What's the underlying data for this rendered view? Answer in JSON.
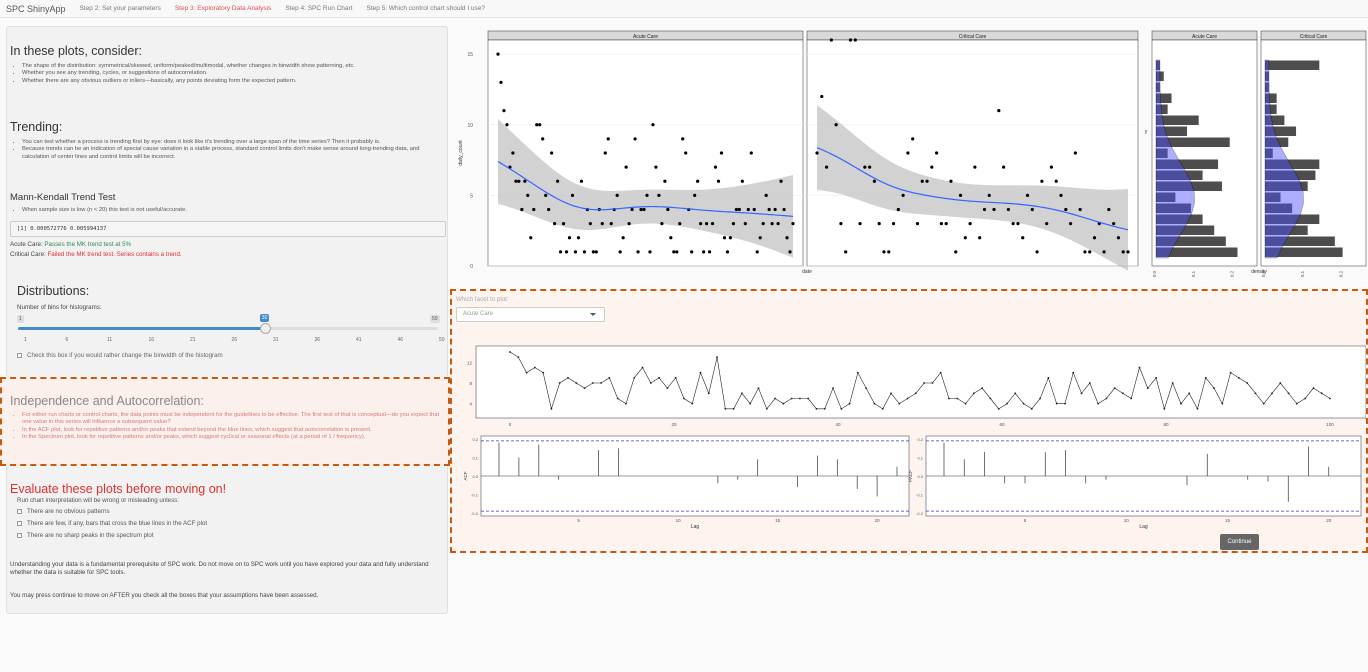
{
  "nav": {
    "brand": "SPC ShinyApp",
    "tabs": [
      {
        "label": "Step 2: Set your parameters",
        "active": false
      },
      {
        "label": "Step 3: Exploratory Data Analysis",
        "active": true
      },
      {
        "label": "Step 4: SPC Run Chart",
        "active": false
      },
      {
        "label": "Step 5: Which control chart should I use?",
        "active": false
      }
    ]
  },
  "consider": {
    "title": "In these plots, consider:",
    "bullets": [
      "The shape of the distribution: symmetrical/skewed, uniform/peaked/multimodal, whether changes in binwidth show patterning, etc.",
      "Whether you see any trending, cycles, or suggestions of autocorrelation.",
      "Whether there are any obvious outliers or inliers—basically, any points deviating form the expected pattern."
    ]
  },
  "trending": {
    "title": "Trending:",
    "bullets": [
      "You can test whether a process is trending first by eye: does it look like it's trending over a large span of the time series? Then it probably is.",
      "Because trends can be an indication of special cause variation in a stable process, standard control limits don't make sense around long-trending data, and calculation of center lines and control limits will be incorrect."
    ]
  },
  "mk": {
    "title": "Mann-Kendall Trend Test",
    "bullet": "When sample size is low (n < 20) this test is not useful/accurate.",
    "output": "[1] 0.000572776 0.005994137",
    "acute_label": "Acute Care: ",
    "acute_result": "Passes the MK trend test at 5%",
    "critical_label": "Critical Care: ",
    "critical_result": "Failed the MK trend test. Series contains a trend."
  },
  "distributions": {
    "title": "Distributions:",
    "bins_label": "Number of bins for histograms:",
    "min": "1",
    "max": "50",
    "value": "30",
    "value_fraction": 0.59,
    "ticks": [
      "1",
      "6",
      "11",
      "16",
      "21",
      "26",
      "31",
      "36",
      "41",
      "46",
      "50"
    ],
    "checkbox_label": "Check this box if you would rather change the binwidth of the histogram"
  },
  "independence": {
    "title": "Independence and Autocorrelation:",
    "bullets": [
      "For either run charts or control charts, the data points must be independent for the guidelines to be effective. The first test of that is conceptual—do you expect that one value in this series will influence a subsequent value?",
      "In the ACF plot, look for repetitive patterns and/or peaks that extend beyond the blue lines, which suggest that autocorrelation is present.",
      "In the Spectrum plot, look for repetitive patterns and/or peaks, which suggest cyclical or seasonal effects (at a period of 1 / frequency)."
    ]
  },
  "evaluate": {
    "title": "Evaluate these plots before moving on!",
    "intro": "Run chart interpretation will be wrong or misleading unless:",
    "checks": [
      "There are no obvious patterns",
      "There are few, if any, bars that cross the blue lines in the ACF plot",
      "There are no sharp peaks in the spectrum plot"
    ],
    "para1": "Understanding your data is a fundamental prerequisite of SPC work. Do not move on to SPC work until you have explored your data and fully understand whether the data is suitable for SPC tools.",
    "para2": "You may press continue to move on AFTER you check all the boxes that your assumptions have been assessed."
  },
  "facet_select": {
    "label": "Which facet to plot:",
    "value": "Acute Care"
  },
  "continue_label": "Continue",
  "colors": {
    "accent": "#e05050",
    "dashed": "#c55a11",
    "smooth": "#3366ff",
    "ci": "#bfbfbf",
    "hist_fill": "#4d4dff",
    "bar": "#4d4d4d"
  },
  "chart_data": [
    {
      "type": "scatter",
      "facets": [
        "Acute Care",
        "Critical Care"
      ],
      "xlabel": "date",
      "ylabel": "daily_count",
      "ylim": [
        0,
        16
      ],
      "yticks": [
        "0",
        "5",
        "10",
        "15"
      ],
      "series": [
        {
          "values": [
            15,
            13,
            11,
            10,
            7,
            8,
            6,
            6,
            4,
            6,
            5,
            2,
            4,
            10,
            10,
            9,
            5,
            4,
            8,
            3,
            6,
            1,
            3,
            1,
            2,
            5,
            1,
            2,
            6,
            1,
            4,
            3,
            1,
            1,
            4,
            3,
            8,
            9,
            3,
            4,
            5,
            1,
            2,
            7,
            3,
            4,
            9,
            1,
            4,
            4,
            5,
            1,
            10,
            7,
            5,
            3,
            6,
            4,
            2,
            1,
            1,
            3,
            9,
            8,
            4,
            1,
            5,
            6,
            3,
            1,
            3,
            1,
            3,
            7,
            6,
            8,
            2,
            1,
            2,
            3,
            4,
            4,
            6,
            3,
            4,
            8,
            4,
            1,
            2,
            3,
            5,
            4,
            3,
            4,
            3,
            6,
            4,
            2,
            1,
            3
          ]
        },
        {
          "values": [
            8,
            12,
            7,
            16,
            10,
            3,
            1,
            16,
            16,
            3,
            7,
            7,
            6,
            3,
            1,
            1,
            3,
            4,
            5,
            8,
            9,
            3,
            6,
            6,
            7,
            8,
            3,
            3,
            6,
            1,
            5,
            2,
            3,
            7,
            2,
            4,
            5,
            4,
            11,
            7,
            4,
            3,
            3,
            2,
            5,
            4,
            1,
            6,
            3,
            7,
            6,
            5,
            4,
            3,
            8,
            4,
            1,
            1,
            2,
            3,
            1,
            4,
            3,
            2,
            1,
            1
          ]
        }
      ]
    },
    {
      "type": "bar",
      "facets": [
        "Acute Care",
        "Critical Care"
      ],
      "xlabel": "density",
      "ylabel": "y",
      "xticks": [
        "0.0",
        "0.1",
        "0.2"
      ],
      "series": [
        {
          "name": "Acute Care",
          "values": [
            0.21,
            0.18,
            0.15,
            0.12,
            0.09,
            0.05,
            0.17,
            0.12,
            0.16,
            0.03,
            0.19,
            0.08,
            0.11,
            0.03,
            0.04,
            0.01,
            0.02,
            0.01
          ]
        },
        {
          "name": "Critical Care",
          "values": [
            0.2,
            0.18,
            0.11,
            0.14,
            0.07,
            0.04,
            0.11,
            0.13,
            0.14,
            0.02,
            0.06,
            0.08,
            0.05,
            0.03,
            0.03,
            0.01,
            0.01,
            0.14
          ]
        }
      ]
    },
    {
      "type": "line",
      "yticks": [
        "4",
        "8",
        "12"
      ],
      "xticks": [
        "0",
        "20",
        "40",
        "60",
        "80",
        "100"
      ],
      "series": [
        {
          "values": [
            14,
            13,
            10,
            11,
            10,
            3,
            8,
            9,
            8,
            7,
            8,
            8,
            9,
            5,
            4,
            9,
            11,
            8,
            9,
            7,
            9,
            5,
            4,
            10,
            6,
            13,
            3,
            3,
            6,
            4,
            7,
            3,
            5,
            4,
            5,
            5,
            5,
            3,
            3,
            7,
            3,
            4,
            10,
            7,
            4,
            3,
            6,
            4,
            5,
            6,
            8,
            8,
            10,
            5,
            5,
            4,
            6,
            7,
            5,
            3,
            4,
            6,
            4,
            3,
            5,
            9,
            4,
            4,
            10,
            6,
            8,
            4,
            5,
            7,
            6,
            5,
            11,
            7,
            9,
            3,
            8,
            4,
            6,
            3,
            9,
            7,
            4,
            10,
            9,
            8,
            6,
            4,
            6,
            8,
            6,
            4,
            5,
            7,
            6,
            5
          ]
        }
      ]
    },
    {
      "type": "bar",
      "xlabel": "Lag",
      "ylabel": "ACF",
      "ylim": [
        -0.2,
        0.2
      ],
      "yticks": [
        "-0.2",
        "-0.1",
        "0.0",
        "0.1",
        "0.2"
      ],
      "xticks": [
        "5",
        "10",
        "15",
        "20"
      ],
      "values": [
        0.18,
        0.1,
        0.17,
        -0.02,
        0.0,
        0.14,
        0.15,
        0.0,
        0.0,
        0.0,
        0.0,
        -0.04,
        -0.02,
        0.09,
        0.0,
        -0.06,
        0.11,
        0.09,
        -0.07,
        -0.11,
        0.05
      ]
    },
    {
      "type": "bar",
      "xlabel": "Lag",
      "ylabel": "PACF",
      "ylim": [
        -0.2,
        0.2
      ],
      "yticks": [
        "-0.2",
        "-0.1",
        "0.0",
        "0.1",
        "0.2"
      ],
      "xticks": [
        "5",
        "10",
        "15",
        "20"
      ],
      "values": [
        0.18,
        0.09,
        0.13,
        -0.04,
        -0.04,
        0.13,
        0.14,
        -0.04,
        -0.02,
        0.0,
        0.0,
        0.0,
        -0.05,
        0.12,
        0.0,
        -0.02,
        -0.03,
        -0.14,
        0.16,
        0.05
      ]
    }
  ]
}
